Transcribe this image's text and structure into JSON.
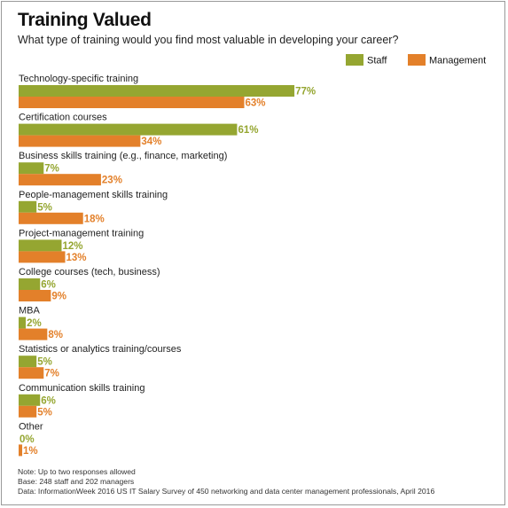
{
  "title": "Training Valued",
  "subtitle": "What type of training would you find most valuable in developing your career?",
  "colors": {
    "staff": "#95a631",
    "management": "#e3802a"
  },
  "notes": [
    "Note: Up to two responses allowed",
    "Base: 248 staff and 202 managers",
    "Data: InformationWeek 2016 US IT Salary Survey of 450 networking and data center management professionals, April 2016"
  ],
  "chart_data": {
    "type": "bar",
    "orientation": "horizontal",
    "title": "Training Valued",
    "subtitle": "What type of training would you find most valuable in developing your career?",
    "unit": "%",
    "legend_position": "top-right",
    "grid": false,
    "categories": [
      "Technology-specific training",
      "Certification courses",
      "Business skills training (e.g., finance, marketing)",
      "People-management skills training",
      "Project-management training",
      "College courses (tech, business)",
      "MBA",
      "Statistics or analytics training/courses",
      "Communication skills training",
      "Other"
    ],
    "series": [
      {
        "name": "Staff",
        "values": [
          77,
          61,
          7,
          5,
          12,
          6,
          2,
          5,
          6,
          0
        ]
      },
      {
        "name": "Management",
        "values": [
          63,
          34,
          23,
          18,
          13,
          9,
          8,
          7,
          5,
          1
        ]
      }
    ],
    "xlim": [
      0,
      100
    ]
  }
}
